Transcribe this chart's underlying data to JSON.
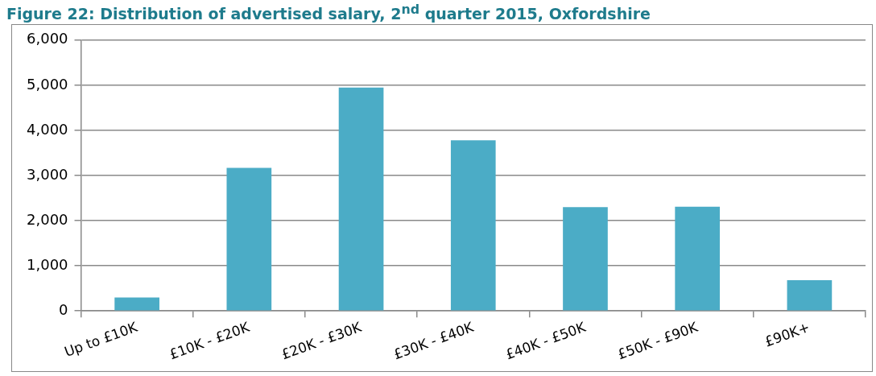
{
  "chart_data": {
    "type": "bar",
    "title": "Figure 22: Distribution of advertised salary, 2$^{nd}$ quarter 2015, Oxfordshire",
    "categories": [
      "Up to £10K",
      "£10K - £20K",
      "£20K - £30K",
      "£30K - £40K",
      "£40K - £50K",
      "£50K - £90K",
      "£90K+"
    ],
    "values": [
      300,
      3170,
      4950,
      3780,
      2300,
      2310,
      680
    ],
    "color": "#4bacc6",
    "ylim": [
      0,
      6000
    ],
    "yticks": [
      0,
      {
        "value": 1000,
        "label": "1,000"
      },
      {
        "value": 2000,
        "label": "2,000"
      },
      {
        "value": 3000,
        "label": "3,000"
      },
      {
        "value": 4000,
        "label": "4,000"
      },
      {
        "value": 5000,
        "label": "5,000"
      },
      {
        "value": 6000,
        "label": "6,000"
      }
    ],
    "grid": "y"
  }
}
